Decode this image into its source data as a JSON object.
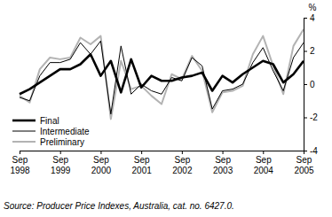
{
  "chart_data": {
    "type": "line",
    "y_label": "%",
    "source": "Source: Producer Price Indexes, Australia, cat. no. 6427.0.",
    "categories": [
      "Sep 1998",
      null,
      null,
      null,
      "Sep 1999",
      null,
      null,
      null,
      "Sep 2000",
      null,
      null,
      null,
      "Sep 2001",
      null,
      null,
      null,
      "Sep 2002",
      null,
      null,
      null,
      "Sep 2003",
      null,
      null,
      null,
      "Sep 2004",
      null,
      null,
      null,
      "Sep 2005"
    ],
    "series": [
      {
        "name": "Final",
        "color": "#000000",
        "values": [
          -0.6,
          -0.3,
          0.1,
          0.5,
          0.9,
          0.9,
          1.2,
          1.8,
          0.5,
          1.4,
          -0.5,
          1.5,
          -0.2,
          0.5,
          0.2,
          0.2,
          0.4,
          0.5,
          0.7,
          -0.4,
          0.5,
          0.1,
          0.6,
          1.0,
          1.4,
          1.2,
          0.1,
          0.6,
          1.4
        ]
      },
      {
        "name": "Intermediate",
        "color": "#000000",
        "values": [
          -0.8,
          -1.0,
          0.5,
          1.3,
          1.3,
          1.5,
          2.5,
          1.8,
          2.6,
          -1.8,
          2.3,
          -0.6,
          0.0,
          -0.4,
          -0.6,
          0.4,
          0.2,
          1.6,
          1.1,
          -1.5,
          -0.4,
          -0.3,
          0.0,
          1.3,
          2.2,
          0.8,
          -0.4,
          1.6,
          2.5
        ]
      },
      {
        "name": "Preliminary",
        "color": "#b3b3b3",
        "values": [
          -0.7,
          -1.1,
          0.9,
          1.6,
          1.5,
          1.6,
          2.8,
          2.4,
          2.9,
          -2.1,
          1.4,
          -0.3,
          -0.1,
          -0.7,
          -1.2,
          0.6,
          0.3,
          1.7,
          0.8,
          -1.7,
          -0.5,
          -0.4,
          -0.1,
          1.8,
          2.9,
          1.1,
          -0.6,
          2.3,
          3.3
        ]
      }
    ],
    "ylim": [
      -4,
      4
    ],
    "yticks": [
      -4,
      -2,
      0,
      2,
      4
    ],
    "legend": "lower-left"
  }
}
